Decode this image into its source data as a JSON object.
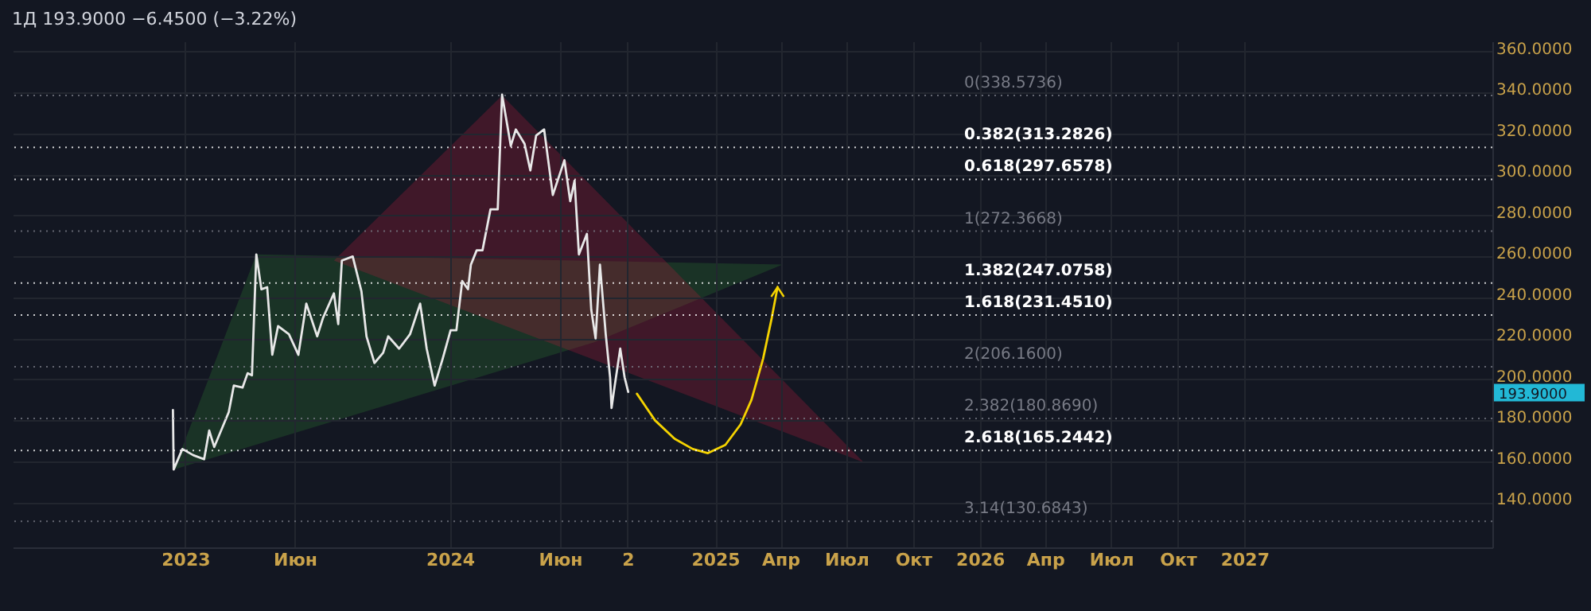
{
  "chart_data": {
    "type": "line",
    "title": "1Д 193.9000 −6.4500 (−3.22%)",
    "x": [
      "2022-12-15",
      "2022-12-16",
      "2022-12-28",
      "2023-01-12",
      "2023-01-27",
      "2023-02-03",
      "2023-02-10",
      "2023-03-02",
      "2023-03-09",
      "2023-03-21",
      "2023-03-28",
      "2023-04-03",
      "2023-04-09",
      "2023-04-16",
      "2023-04-24",
      "2023-05-01",
      "2023-05-09",
      "2023-05-24",
      "2023-06-06",
      "2023-06-17",
      "2023-07-02",
      "2023-07-10",
      "2023-07-25",
      "2023-07-31",
      "2023-08-05",
      "2023-08-20",
      "2023-09-01",
      "2023-09-08",
      "2023-09-19",
      "2023-10-01",
      "2023-10-08",
      "2023-10-23",
      "2023-11-07",
      "2023-11-21",
      "2023-11-30",
      "2023-12-11",
      "2023-12-22",
      "2024-01-02",
      "2024-01-10",
      "2024-01-18",
      "2024-01-26",
      "2024-01-30",
      "2024-02-07",
      "2024-02-15",
      "2024-02-26",
      "2024-03-07",
      "2024-03-13",
      "2024-03-25",
      "2024-04-01",
      "2024-04-13",
      "2024-04-21",
      "2024-04-29",
      "2024-05-10",
      "2024-05-22",
      "2024-06-07",
      "2024-06-15",
      "2024-06-21",
      "2024-06-27",
      "2024-07-08",
      "2024-07-14",
      "2024-07-20",
      "2024-07-26",
      "2024-08-03",
      "2024-08-09",
      "2024-08-11",
      "2024-08-15",
      "2024-08-23",
      "2024-08-29",
      "2024-09-03"
    ],
    "series": [
      {
        "color": "#e8e8e8",
        "values": [
          185,
          156,
          166,
          163,
          161,
          175,
          167,
          184,
          197,
          196,
          203,
          202,
          261,
          244,
          245,
          212,
          226,
          222,
          212,
          237,
          221,
          230,
          242,
          227,
          258,
          260,
          243,
          221,
          208,
          213,
          221,
          215,
          222,
          237,
          215,
          197,
          210,
          224,
          224,
          248,
          244,
          256,
          263,
          263,
          283,
          283,
          339,
          314,
          322,
          315,
          302,
          319,
          322,
          290,
          307,
          287,
          297,
          261,
          271,
          234,
          220,
          256,
          222,
          201,
          186,
          196,
          215,
          201,
          193.9
        ]
      },
      {
        "color": "#f5d300",
        "x": [
          "2024-09-15",
          "2024-10-10",
          "2024-11-06",
          "2024-12-01",
          "2024-12-22",
          "2025-01-15",
          "2025-02-05",
          "2025-02-20",
          "2025-03-08",
          "2025-03-20",
          "2025-03-28"
        ],
        "values": [
          193,
          180,
          171,
          166,
          164,
          168,
          178,
          190,
          210,
          230,
          245
        ]
      }
    ],
    "xlim": [
      "2022-05-08",
      "2027-12-09"
    ],
    "xticks": [
      {
        "value": "2023-01-01",
        "label": "2023"
      },
      {
        "value": "2023-06-01",
        "label": "Июн"
      },
      {
        "value": "2024-01-01",
        "label": "2024"
      },
      {
        "value": "2024-06-01",
        "label": "Июн"
      },
      {
        "value": "2024-09-02",
        "label": "2"
      },
      {
        "value": "2025-01-01",
        "label": "2025"
      },
      {
        "value": "2025-04-01",
        "label": "Апр"
      },
      {
        "value": "2025-07-01",
        "label": "Июл"
      },
      {
        "value": "2025-10-01",
        "label": "Окт"
      },
      {
        "value": "2026-01-01",
        "label": "2026"
      },
      {
        "value": "2026-04-01",
        "label": "Апр"
      },
      {
        "value": "2026-07-01",
        "label": "Июл"
      },
      {
        "value": "2026-10-01",
        "label": "Окт"
      },
      {
        "value": "2027-01-01",
        "label": "2027"
      }
    ],
    "ylim": [
      118,
      365
    ],
    "yticks": [
      {
        "value": 140,
        "label": "140.0000"
      },
      {
        "value": 160,
        "label": "160.0000"
      },
      {
        "value": 180,
        "label": "180.0000"
      },
      {
        "value": 200,
        "label": "200.0000"
      },
      {
        "value": 220,
        "label": "220.0000"
      },
      {
        "value": 240,
        "label": "240.0000"
      },
      {
        "value": 260,
        "label": "260.0000"
      },
      {
        "value": 280,
        "label": "280.0000"
      },
      {
        "value": 300,
        "label": "300.0000"
      },
      {
        "value": 320,
        "label": "320.0000"
      },
      {
        "value": 340,
        "label": "340.0000"
      },
      {
        "value": 360,
        "label": "360.0000"
      }
    ],
    "ref_lines": [
      {
        "axis": "y",
        "value": 338.5736,
        "label": "0(338.5736)",
        "color": "#787b86",
        "line_style": "dotted"
      },
      {
        "axis": "y",
        "value": 313.2826,
        "label": "0.382(313.2826)",
        "color": "#ffffff",
        "line_style": "dotted"
      },
      {
        "axis": "y",
        "value": 297.6578,
        "label": "0.618(297.6578)",
        "color": "#ffffff",
        "line_style": "dotted"
      },
      {
        "axis": "y",
        "value": 272.3668,
        "label": "1(272.3668)",
        "color": "#787b86",
        "line_style": "dotted"
      },
      {
        "axis": "y",
        "value": 247.0758,
        "label": "1.382(247.0758)",
        "color": "#ffffff",
        "line_style": "dotted"
      },
      {
        "axis": "y",
        "value": 231.451,
        "label": "1.618(231.4510)",
        "color": "#ffffff",
        "line_style": "dotted"
      },
      {
        "axis": "y",
        "value": 206.16,
        "label": "2(206.1600)",
        "color": "#787b86",
        "line_style": "dotted"
      },
      {
        "axis": "y",
        "value": 180.869,
        "label": "2.382(180.8690)",
        "color": "#787b86",
        "line_style": "dotted"
      },
      {
        "axis": "y",
        "value": 165.2442,
        "label": "2.618(165.2442)",
        "color": "#ffffff",
        "line_style": "dotted"
      },
      {
        "axis": "y",
        "value": 130.6843,
        "label": "3.14(130.6843)",
        "color": "#787b86",
        "line_style": "dotted"
      }
    ],
    "annotations": [
      "193.9000"
    ],
    "grid": true,
    "marker": "none",
    "line_style": "solid"
  }
}
